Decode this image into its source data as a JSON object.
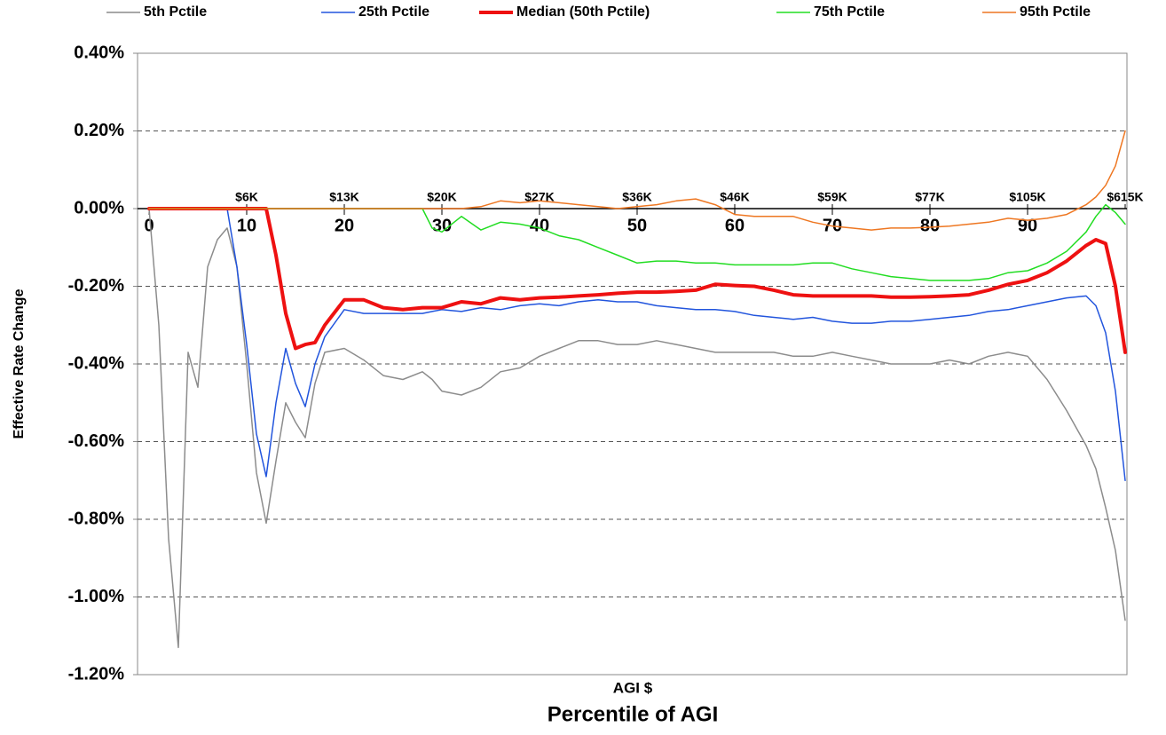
{
  "chart_data": {
    "type": "line",
    "y_axis_label": "Effective Rate Change",
    "x_axis_label": "Percentile of AGI",
    "x2_axis_label": "AGI $",
    "x": [
      0,
      1,
      2,
      3,
      4,
      5,
      6,
      7,
      8,
      9,
      10,
      11,
      12,
      13,
      14,
      15,
      16,
      17,
      18,
      20,
      22,
      24,
      26,
      28,
      29,
      30,
      32,
      34,
      36,
      38,
      40,
      42,
      44,
      46,
      48,
      50,
      52,
      54,
      56,
      58,
      60,
      62,
      64,
      66,
      68,
      70,
      72,
      74,
      76,
      78,
      80,
      82,
      84,
      86,
      88,
      90,
      92,
      94,
      96,
      97,
      98,
      99,
      100
    ],
    "xlim": [
      -1,
      100
    ],
    "xticks": [
      0,
      10,
      20,
      30,
      40,
      50,
      60,
      70,
      80,
      90
    ],
    "x2ticks": [
      {
        "value": 10,
        "label": "$6K"
      },
      {
        "value": 20,
        "label": "$13K"
      },
      {
        "value": 30,
        "label": "$20K"
      },
      {
        "value": 40,
        "label": "$27K"
      },
      {
        "value": 50,
        "label": "$36K"
      },
      {
        "value": 60,
        "label": "$46K"
      },
      {
        "value": 70,
        "label": "$59K"
      },
      {
        "value": 80,
        "label": "$77K"
      },
      {
        "value": 90,
        "label": "$105K"
      },
      {
        "value": 100,
        "label": "$615K"
      }
    ],
    "ylim": [
      -1.2,
      0.4
    ],
    "yticks": [
      {
        "value": -1.2,
        "label": "-1.20%"
      },
      {
        "value": -1.0,
        "label": "-1.00%"
      },
      {
        "value": -0.8,
        "label": "-0.80%"
      },
      {
        "value": -0.6,
        "label": "-0.60%"
      },
      {
        "value": -0.4,
        "label": "-0.40%"
      },
      {
        "value": -0.2,
        "label": "-0.20%"
      },
      {
        "value": 0,
        "label": "0.00%"
      },
      {
        "value": 0.2,
        "label": "0.20%"
      },
      {
        "value": 0.4,
        "label": "0.40%"
      }
    ],
    "grid": true,
    "legend": "top",
    "series": [
      {
        "name": "5th Pctile",
        "color": "#8c8c8c",
        "width": 1.5,
        "values": [
          0,
          -0.3,
          -0.85,
          -1.13,
          -0.37,
          -0.46,
          -0.15,
          -0.08,
          -0.05,
          -0.15,
          -0.4,
          -0.68,
          -0.81,
          -0.65,
          -0.5,
          -0.55,
          -0.59,
          -0.45,
          -0.37,
          -0.36,
          -0.39,
          -0.43,
          -0.44,
          -0.42,
          -0.44,
          -0.47,
          -0.48,
          -0.46,
          -0.42,
          -0.41,
          -0.38,
          -0.36,
          -0.34,
          -0.34,
          -0.35,
          -0.35,
          -0.34,
          -0.35,
          -0.36,
          -0.37,
          -0.37,
          -0.37,
          -0.37,
          -0.38,
          -0.38,
          -0.37,
          -0.38,
          -0.39,
          -0.4,
          -0.4,
          -0.4,
          -0.39,
          -0.4,
          -0.38,
          -0.37,
          -0.38,
          -0.44,
          -0.52,
          -0.61,
          -0.67,
          -0.77,
          -0.88,
          -1.06
        ]
      },
      {
        "name": "25th Pctile",
        "color": "#2255dd",
        "width": 1.5,
        "values": [
          0,
          0,
          0,
          0,
          0,
          0,
          0,
          0,
          0,
          -0.15,
          -0.35,
          -0.58,
          -0.69,
          -0.5,
          -0.36,
          -0.45,
          -0.51,
          -0.4,
          -0.33,
          -0.26,
          -0.27,
          -0.27,
          -0.27,
          -0.27,
          -0.265,
          -0.26,
          -0.265,
          -0.255,
          -0.26,
          -0.25,
          -0.245,
          -0.25,
          -0.24,
          -0.235,
          -0.24,
          -0.24,
          -0.25,
          -0.255,
          -0.26,
          -0.26,
          -0.265,
          -0.275,
          -0.28,
          -0.285,
          -0.28,
          -0.29,
          -0.295,
          -0.295,
          -0.29,
          -0.29,
          -0.285,
          -0.28,
          -0.275,
          -0.265,
          -0.26,
          -0.25,
          -0.24,
          -0.23,
          -0.225,
          -0.25,
          -0.32,
          -0.47,
          -0.7
        ]
      },
      {
        "name": "Median (50th Pctile)",
        "color": "#ee1111",
        "width": 4,
        "values": [
          0,
          0,
          0,
          0,
          0,
          0,
          0,
          0,
          0,
          0,
          0,
          0,
          0,
          -0.12,
          -0.27,
          -0.36,
          -0.35,
          -0.345,
          -0.3,
          -0.235,
          -0.235,
          -0.255,
          -0.26,
          -0.255,
          -0.255,
          -0.255,
          -0.24,
          -0.245,
          -0.23,
          -0.235,
          -0.23,
          -0.228,
          -0.225,
          -0.222,
          -0.218,
          -0.215,
          -0.215,
          -0.213,
          -0.21,
          -0.195,
          -0.198,
          -0.2,
          -0.21,
          -0.222,
          -0.225,
          -0.225,
          -0.225,
          -0.225,
          -0.228,
          -0.228,
          -0.227,
          -0.225,
          -0.222,
          -0.21,
          -0.195,
          -0.185,
          -0.165,
          -0.135,
          -0.095,
          -0.08,
          -0.09,
          -0.2,
          -0.37
        ]
      },
      {
        "name": "75th Pctile",
        "color": "#22dd22",
        "width": 1.5,
        "values": [
          0,
          0,
          0,
          0,
          0,
          0,
          0,
          0,
          0,
          0,
          0,
          0,
          0,
          0,
          0,
          0,
          0,
          0,
          0,
          0,
          0,
          0,
          0,
          0,
          -0.05,
          -0.06,
          -0.02,
          -0.055,
          -0.035,
          -0.04,
          -0.05,
          -0.07,
          -0.08,
          -0.1,
          -0.12,
          -0.14,
          -0.135,
          -0.135,
          -0.14,
          -0.14,
          -0.145,
          -0.145,
          -0.145,
          -0.145,
          -0.14,
          -0.14,
          -0.155,
          -0.165,
          -0.175,
          -0.18,
          -0.185,
          -0.185,
          -0.185,
          -0.18,
          -0.165,
          -0.16,
          -0.14,
          -0.11,
          -0.06,
          -0.02,
          0.01,
          -0.01,
          -0.04
        ]
      },
      {
        "name": "95th Pctile",
        "color": "#ee7722",
        "width": 1.5,
        "values": [
          0,
          0,
          0,
          0,
          0,
          0,
          0,
          0,
          0,
          0,
          0,
          0,
          0,
          0,
          0,
          0,
          0,
          0,
          0,
          0,
          0,
          0,
          0,
          0,
          0,
          0,
          0,
          0.005,
          0.02,
          0.015,
          0.02,
          0.015,
          0.01,
          0.005,
          0,
          0.005,
          0.01,
          0.02,
          0.025,
          0.01,
          -0.015,
          -0.02,
          -0.02,
          -0.02,
          -0.035,
          -0.045,
          -0.05,
          -0.055,
          -0.05,
          -0.05,
          -0.048,
          -0.045,
          -0.04,
          -0.035,
          -0.025,
          -0.03,
          -0.025,
          -0.015,
          0.01,
          0.03,
          0.06,
          0.11,
          0.2
        ]
      }
    ]
  }
}
